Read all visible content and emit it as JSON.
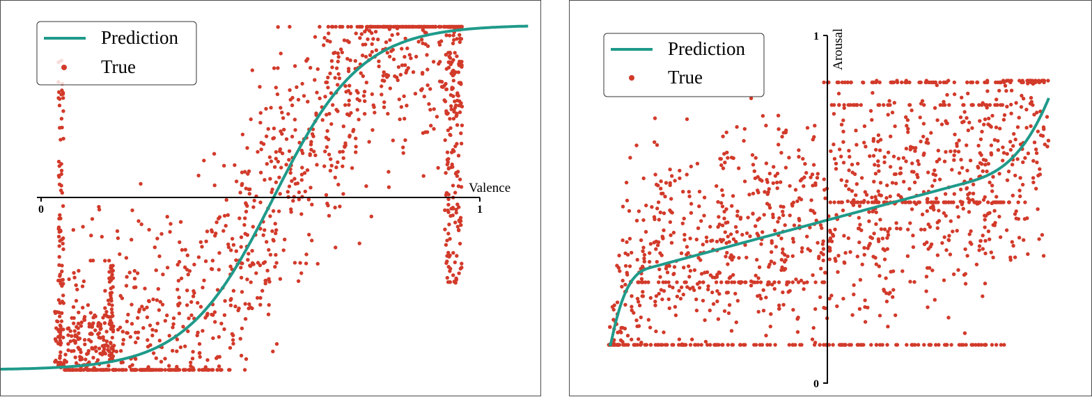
{
  "chart_data": [
    {
      "type": "scatter",
      "title": "",
      "xlabel": "Valence",
      "ylabel": "",
      "xlim": [
        0,
        1
      ],
      "x_ticks": [
        "0",
        "1"
      ],
      "legend": {
        "placement": "top-left",
        "entries": [
          "Prediction",
          "True"
        ]
      },
      "colors": {
        "prediction": "#1f9a8a",
        "true": "#d23a2a",
        "axis": "#000000"
      },
      "series": [
        {
          "name": "Prediction",
          "kind": "line",
          "shape": "logistic-s-curve",
          "x_range": [
            -0.1,
            1.11
          ],
          "y_range": [
            -1.0,
            1.0
          ],
          "midpoint_x": 0.53
        },
        {
          "name": "True",
          "kind": "scatter",
          "n_points": 1500,
          "y_range": [
            -1.0,
            1.0
          ],
          "note_free": true
        }
      ],
      "grid": false
    },
    {
      "type": "scatter",
      "title": "",
      "xlabel": "",
      "ylabel": "Arousal",
      "ylim": [
        0,
        1
      ],
      "y_ticks": [
        "1",
        "0"
      ],
      "legend": {
        "placement": "top-left",
        "entries": [
          "Prediction",
          "True"
        ]
      },
      "colors": {
        "prediction": "#1f9a8a",
        "true": "#d23a2a",
        "axis": "#000000"
      },
      "series": [
        {
          "name": "Prediction",
          "kind": "line",
          "shape": "quantile-curve",
          "x_range": [
            0.0,
            1.0
          ],
          "y_range": [
            0.11,
            0.82
          ]
        },
        {
          "name": "True",
          "kind": "scatter",
          "n_points": 1500,
          "y_range": [
            0.11,
            0.87
          ]
        }
      ],
      "grid": false
    }
  ]
}
